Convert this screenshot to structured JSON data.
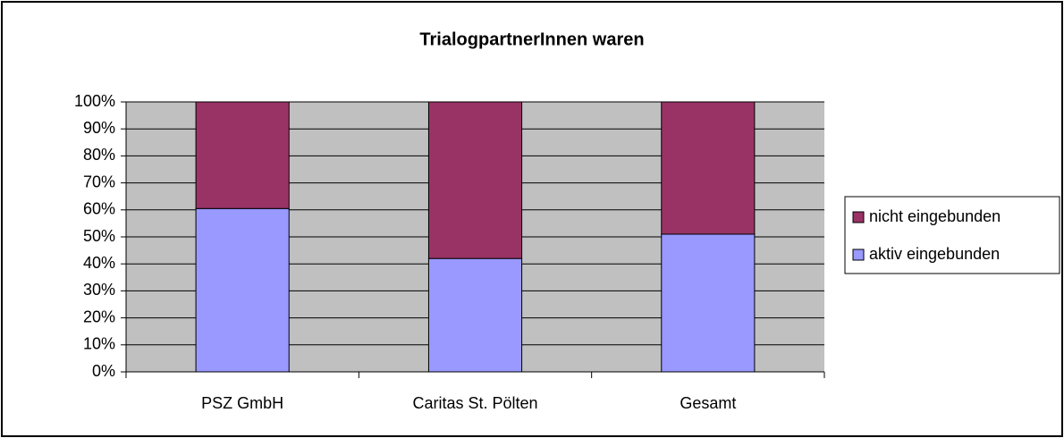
{
  "chart_data": {
    "type": "stacked_bar",
    "title": "TrialogpartnerInnen waren",
    "categories": [
      "PSZ GmbH",
      "Caritas St. Pölten",
      "Gesamt"
    ],
    "series": [
      {
        "name": "aktiv eingebunden",
        "color": "#9999ff",
        "values": [
          60.5,
          42,
          51
        ]
      },
      {
        "name": "nicht eingebunden",
        "color": "#993366",
        "values": [
          39.5,
          58,
          49
        ]
      }
    ],
    "ylim": [
      0,
      100
    ],
    "yticks": [
      {
        "value": 0,
        "label": "0%"
      },
      {
        "value": 10,
        "label": "10%"
      },
      {
        "value": 20,
        "label": "20%"
      },
      {
        "value": 30,
        "label": "30%"
      },
      {
        "value": 40,
        "label": "40%"
      },
      {
        "value": 50,
        "label": "50%"
      },
      {
        "value": 60,
        "label": "60%"
      },
      {
        "value": 70,
        "label": "70%"
      },
      {
        "value": 80,
        "label": "80%"
      },
      {
        "value": 90,
        "label": "90%"
      },
      {
        "value": 100,
        "label": "100%"
      }
    ],
    "grid": true,
    "legend": "right",
    "plot_background": "#c0c0c0"
  }
}
